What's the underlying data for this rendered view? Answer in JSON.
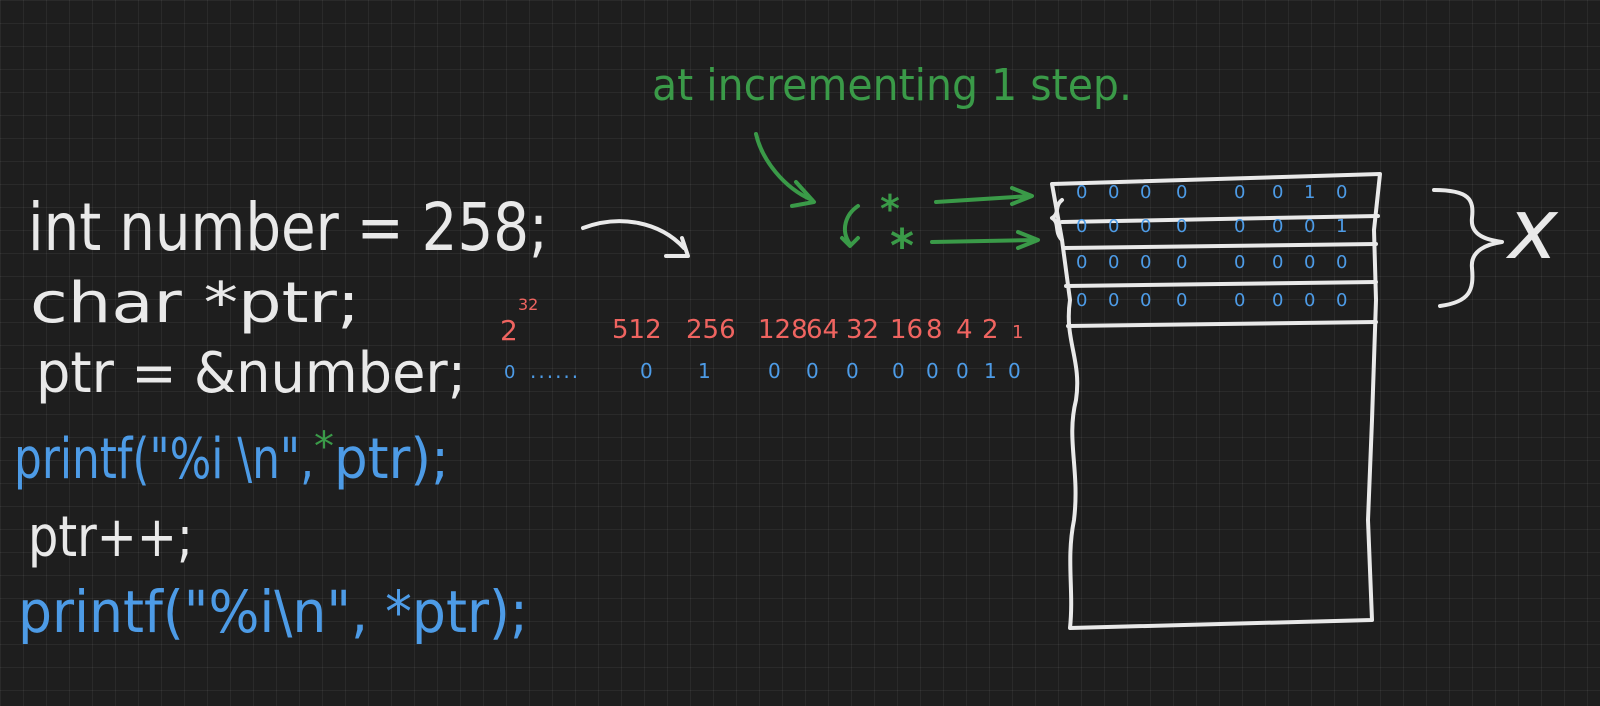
{
  "code": {
    "line1": "int number = 258;",
    "line2": "char  *ptr;",
    "line3": "ptr = &number;",
    "line4_pre": "printf(\"%i \\n\",",
    "line4_star": "*",
    "line4_post": "ptr);",
    "line5": "ptr++;",
    "line6": "printf(\"%i\\n\", *ptr);"
  },
  "annotation": {
    "top": "at incrementing 1 step.",
    "brace_label": "x"
  },
  "powers_of_two": {
    "base": "2",
    "exponent": "32",
    "labels": [
      "512",
      "256",
      "128",
      "64",
      "32",
      "16",
      "8",
      "4",
      "2",
      "1"
    ]
  },
  "binary_row": {
    "leading": "0",
    "dots": "......",
    "bits": [
      "0",
      "1",
      "0",
      "0",
      "0",
      "0",
      "0",
      "0",
      "1",
      "0"
    ]
  },
  "memory": {
    "pointer_marks": [
      "*",
      "*"
    ],
    "rows": [
      [
        "0",
        "0",
        "0",
        "0",
        "0",
        "0",
        "1",
        "0"
      ],
      [
        "0",
        "0",
        "0",
        "0",
        "0",
        "0",
        "0",
        "1"
      ],
      [
        "0",
        "0",
        "0",
        "0",
        "0",
        "0",
        "0",
        "0"
      ],
      [
        "0",
        "0",
        "0",
        "0",
        "0",
        "0",
        "0",
        "0"
      ]
    ]
  },
  "colors": {
    "background": "#1e1e1e",
    "chalk_white": "#e9e9e9",
    "blue": "#4d9be6",
    "green": "#3a9a48",
    "red": "#ef6460"
  }
}
